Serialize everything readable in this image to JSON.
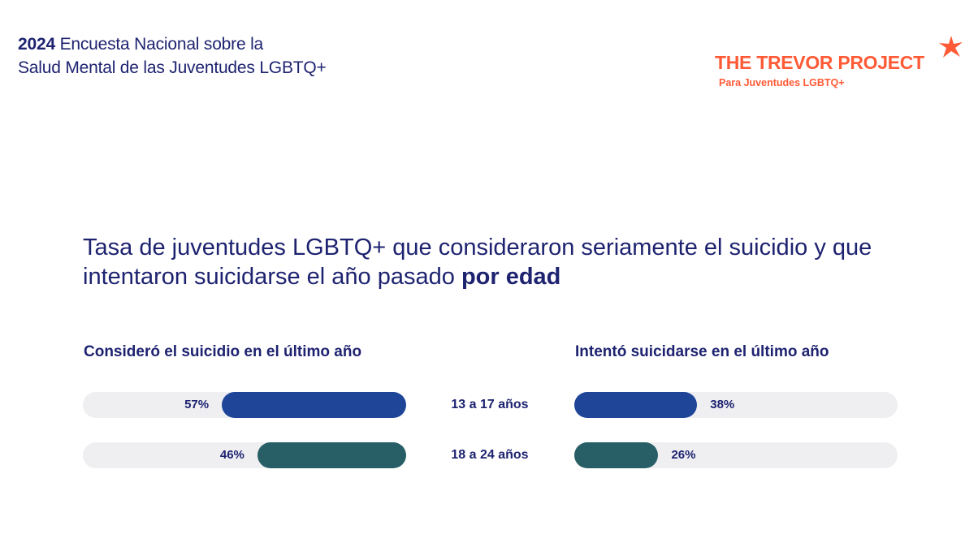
{
  "header": {
    "survey_year": "2024",
    "survey_title_line1": "Encuesta Nacional sobre la",
    "survey_title_line2": "Salud Mental de las Juventudes LGBTQ+"
  },
  "logo": {
    "name": "THE TREVOR PROJECT",
    "tagline": "Para Juventudes LGBTQ+",
    "icon": "star-icon",
    "color": "#ff5a36"
  },
  "chart_data": {
    "type": "bar",
    "title_main": "Tasa de juventudes LGBTQ+ que consideraron seriamente el suicidio y que intentaron suicidarse el año pasado",
    "title_emphasis": "por edad",
    "categories": [
      "13 a 17 años",
      "18 a 24 años"
    ],
    "unit": "%",
    "xlim": [
      0,
      100
    ],
    "grid": false,
    "series": [
      {
        "name": "Consideró el suicidio en el último año",
        "values": [
          57,
          46
        ],
        "colors": [
          "#1e4598",
          "#285f66"
        ],
        "direction": "right-to-left"
      },
      {
        "name": "Intentó suicidarse en el último año",
        "values": [
          38,
          26
        ],
        "colors": [
          "#1e4598",
          "#285f66"
        ],
        "direction": "left-to-right"
      }
    ],
    "track_color": "#efeff2"
  }
}
